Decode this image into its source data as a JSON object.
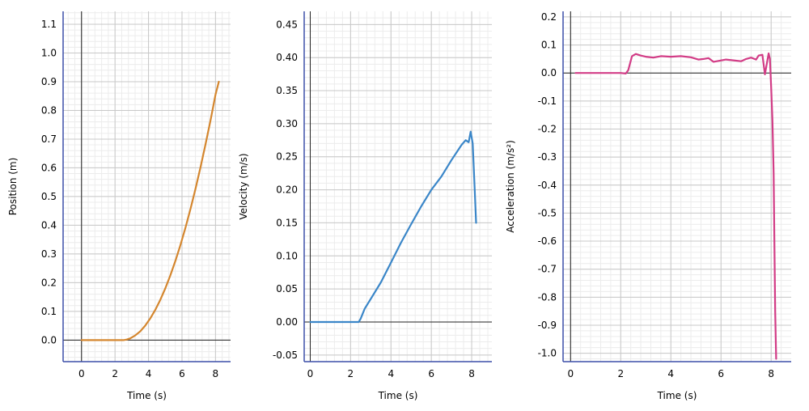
{
  "chart_data": [
    {
      "type": "line",
      "xlabel": "Time (s)",
      "ylabel": "Position (m)",
      "xlim": [
        -1.1,
        8.9
      ],
      "ylim": [
        -0.075,
        1.145
      ],
      "xticks": [
        0,
        2,
        4,
        6,
        8
      ],
      "yticks": [
        0.0,
        0.1,
        0.2,
        0.3,
        0.4,
        0.5,
        0.6,
        0.7,
        0.8,
        0.9,
        1.0,
        1.1
      ],
      "ytick_labels": [
        "0.0",
        "0.1",
        "0.2",
        "0.3",
        "0.4",
        "0.5",
        "0.6",
        "0.7",
        "0.8",
        "0.9",
        "1.0",
        "1.1"
      ],
      "grid": true,
      "series": [
        {
          "color": "#d4862e",
          "x": [
            0,
            1,
            2,
            2.5,
            2.7,
            2.9,
            3.2,
            3.5,
            3.8,
            4.1,
            4.4,
            4.7,
            5.0,
            5.3,
            5.6,
            5.9,
            6.2,
            6.5,
            6.8,
            7.1,
            7.4,
            7.7,
            8.0,
            8.2
          ],
          "y": [
            0,
            0,
            0,
            0,
            0.002,
            0.006,
            0.016,
            0.03,
            0.05,
            0.075,
            0.105,
            0.14,
            0.18,
            0.225,
            0.275,
            0.33,
            0.39,
            0.455,
            0.525,
            0.6,
            0.68,
            0.765,
            0.855,
            0.9
          ]
        }
      ]
    },
    {
      "type": "line",
      "xlabel": "Time (s)",
      "ylabel": "Velocity (m/s)",
      "xlim": [
        -0.3,
        9.0
      ],
      "ylim": [
        -0.06,
        0.47
      ],
      "xticks": [
        0,
        2,
        4,
        6,
        8
      ],
      "yticks": [
        -0.05,
        0.0,
        0.05,
        0.1,
        0.15,
        0.2,
        0.25,
        0.3,
        0.35,
        0.4,
        0.45
      ],
      "ytick_labels": [
        "-0.05",
        "0.00",
        "0.05",
        "0.10",
        "0.15",
        "0.20",
        "0.25",
        "0.30",
        "0.35",
        "0.40",
        "0.45"
      ],
      "grid": true,
      "series": [
        {
          "color": "#3a86c8",
          "x": [
            0,
            1,
            2,
            2.4,
            2.5,
            2.7,
            3.0,
            3.5,
            4.0,
            4.5,
            5.0,
            5.5,
            6.0,
            6.5,
            7.0,
            7.5,
            7.7,
            7.85,
            7.95,
            8.05,
            8.15,
            8.22
          ],
          "y": [
            0,
            0,
            0,
            0,
            0.005,
            0.02,
            0.035,
            0.06,
            0.09,
            0.12,
            0.148,
            0.175,
            0.2,
            0.22,
            0.245,
            0.268,
            0.275,
            0.272,
            0.288,
            0.27,
            0.2,
            0.15
          ]
        }
      ]
    },
    {
      "type": "line",
      "xlabel": "Time (s)",
      "ylabel": "Acceleration (m/s²)",
      "xlim": [
        -0.3,
        8.8
      ],
      "ylim": [
        -1.03,
        0.22
      ],
      "xticks": [
        0,
        2,
        4,
        6,
        8
      ],
      "yticks": [
        0.2,
        0.1,
        0.0,
        -0.1,
        -0.2,
        -0.3,
        -0.4,
        -0.5,
        -0.6,
        -0.7,
        -0.8,
        -0.9,
        -1.0
      ],
      "ytick_labels": [
        "0.2",
        "0.1",
        "0.0",
        "-0.1",
        "-0.2",
        "-0.3",
        "-0.4",
        "-0.5",
        "-0.6",
        "-0.7",
        "-0.8",
        "-0.9",
        "-1.0"
      ],
      "grid": true,
      "series": [
        {
          "color": "#d23c86",
          "x": [
            0.2,
            1.0,
            2.0,
            2.2,
            2.3,
            2.45,
            2.6,
            2.8,
            3.0,
            3.3,
            3.6,
            4.0,
            4.4,
            4.8,
            5.1,
            5.3,
            5.5,
            5.7,
            5.9,
            6.2,
            6.5,
            6.8,
            7.0,
            7.2,
            7.4,
            7.5,
            7.65,
            7.75,
            7.85,
            7.9,
            7.95,
            8.0,
            8.05,
            8.1,
            8.13,
            8.16,
            8.2
          ],
          "y": [
            0,
            0,
            0,
            -0.002,
            0.01,
            0.06,
            0.068,
            0.062,
            0.058,
            0.055,
            0.06,
            0.058,
            0.06,
            0.056,
            0.048,
            0.05,
            0.053,
            0.04,
            0.043,
            0.048,
            0.045,
            0.042,
            0.05,
            0.055,
            0.048,
            0.062,
            0.065,
            -0.005,
            0.045,
            0.07,
            0.05,
            -0.05,
            -0.17,
            -0.36,
            -0.6,
            -0.85,
            -1.02
          ]
        }
      ]
    }
  ]
}
